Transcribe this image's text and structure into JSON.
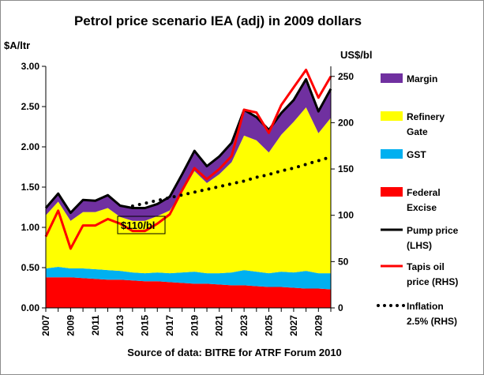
{
  "chart_data": {
    "type": "area",
    "title": "Petrol price scenario IEA (adj) in 2009 dollars",
    "left_axis_label": "$A/ltr",
    "right_axis_label": "US$/bl",
    "left_ylim": [
      0,
      3.0
    ],
    "left_ticks": [
      "0.00",
      "0.50",
      "1.00",
      "1.50",
      "2.00",
      "2.50",
      "3.00"
    ],
    "right_ylim": [
      0,
      260.87
    ],
    "right_ticks": [
      "0",
      "50",
      "100",
      "150",
      "200",
      "250"
    ],
    "x": [
      2007,
      2008,
      2009,
      2010,
      2011,
      2012,
      2013,
      2014,
      2015,
      2016,
      2017,
      2018,
      2019,
      2020,
      2021,
      2022,
      2023,
      2024,
      2025,
      2026,
      2027,
      2028,
      2029,
      2030
    ],
    "x_tick_labels": [
      "2007",
      "2009",
      "2011",
      "2013",
      "2015",
      "2017",
      "2019",
      "2021",
      "2023",
      "2025",
      "2027",
      "2029"
    ],
    "grid": false,
    "legend_position": "right",
    "stack_series": [
      {
        "name": "Federal Excise",
        "color": "#ff0000",
        "values": [
          0.38,
          0.38,
          0.38,
          0.37,
          0.36,
          0.35,
          0.35,
          0.34,
          0.33,
          0.33,
          0.32,
          0.31,
          0.3,
          0.3,
          0.29,
          0.28,
          0.28,
          0.27,
          0.26,
          0.26,
          0.25,
          0.24,
          0.24,
          0.23
        ]
      },
      {
        "name": "GST",
        "color": "#00b0f0",
        "values": [
          0.11,
          0.13,
          0.11,
          0.12,
          0.12,
          0.12,
          0.11,
          0.1,
          0.1,
          0.11,
          0.11,
          0.13,
          0.15,
          0.13,
          0.14,
          0.16,
          0.19,
          0.18,
          0.17,
          0.19,
          0.19,
          0.22,
          0.19,
          0.2
        ]
      },
      {
        "name": "Refinery Gate",
        "color": "#ffff00",
        "values": [
          0.66,
          0.81,
          0.59,
          0.7,
          0.71,
          0.77,
          0.67,
          0.64,
          0.65,
          0.7,
          0.78,
          1.0,
          1.25,
          1.12,
          1.23,
          1.37,
          1.67,
          1.63,
          1.5,
          1.7,
          1.87,
          2.03,
          1.74,
          1.93
        ]
      },
      {
        "name": "Margin",
        "color": "#7030a0",
        "values": [
          0.09,
          0.1,
          0.1,
          0.15,
          0.14,
          0.16,
          0.14,
          0.16,
          0.16,
          0.15,
          0.17,
          0.22,
          0.25,
          0.21,
          0.22,
          0.24,
          0.32,
          0.29,
          0.28,
          0.27,
          0.27,
          0.35,
          0.27,
          0.36
        ]
      }
    ],
    "lines": [
      {
        "name": "Pump price (LHS)",
        "axis": "left",
        "color": "#000000",
        "values": [
          1.24,
          1.42,
          1.18,
          1.34,
          1.33,
          1.4,
          1.27,
          1.24,
          1.24,
          1.29,
          1.38,
          1.66,
          1.95,
          1.76,
          1.88,
          2.05,
          2.46,
          2.37,
          2.21,
          2.42,
          2.58,
          2.84,
          2.44,
          2.72
        ]
      },
      {
        "name": "Tapis oil price (RHS)",
        "axis": "right",
        "color": "#ff0000",
        "values": [
          77,
          105,
          64,
          89,
          89,
          96,
          91,
          83,
          83,
          91,
          101,
          127,
          151,
          139,
          150,
          164,
          214,
          211,
          189,
          219,
          238,
          257,
          227,
          250
        ]
      },
      {
        "name": "Inflation 2.5% (RHS)",
        "axis": "right",
        "color": "#000000",
        "dashed": true,
        "start_index": 7,
        "values": [
          null,
          null,
          null,
          null,
          null,
          null,
          null,
          110,
          113,
          116,
          119,
          122,
          125,
          128,
          131,
          134,
          137,
          141,
          144,
          148,
          151,
          155,
          159,
          163
        ]
      }
    ],
    "annotation": {
      "text": "$110/bl"
    },
    "source": "Source of data: BITRE for ATRF Forum 2010"
  },
  "legend": [
    {
      "lines": [
        "Margin"
      ],
      "kind": "box",
      "color": "#7030a0"
    },
    {
      "lines": [
        "Refinery",
        "Gate"
      ],
      "kind": "box",
      "color": "#ffff00"
    },
    {
      "lines": [
        "GST"
      ],
      "kind": "box",
      "color": "#00b0f0"
    },
    {
      "lines": [
        "Federal",
        "Excise"
      ],
      "kind": "box",
      "color": "#ff0000"
    },
    {
      "lines": [
        "Pump price",
        "(LHS)"
      ],
      "kind": "line",
      "color": "#000000"
    },
    {
      "lines": [
        "Tapis oil",
        "price (RHS)"
      ],
      "kind": "line",
      "color": "#ff0000"
    },
    {
      "lines": [
        "Inflation",
        "2.5% (RHS)"
      ],
      "kind": "dots",
      "color": "#000000"
    }
  ]
}
